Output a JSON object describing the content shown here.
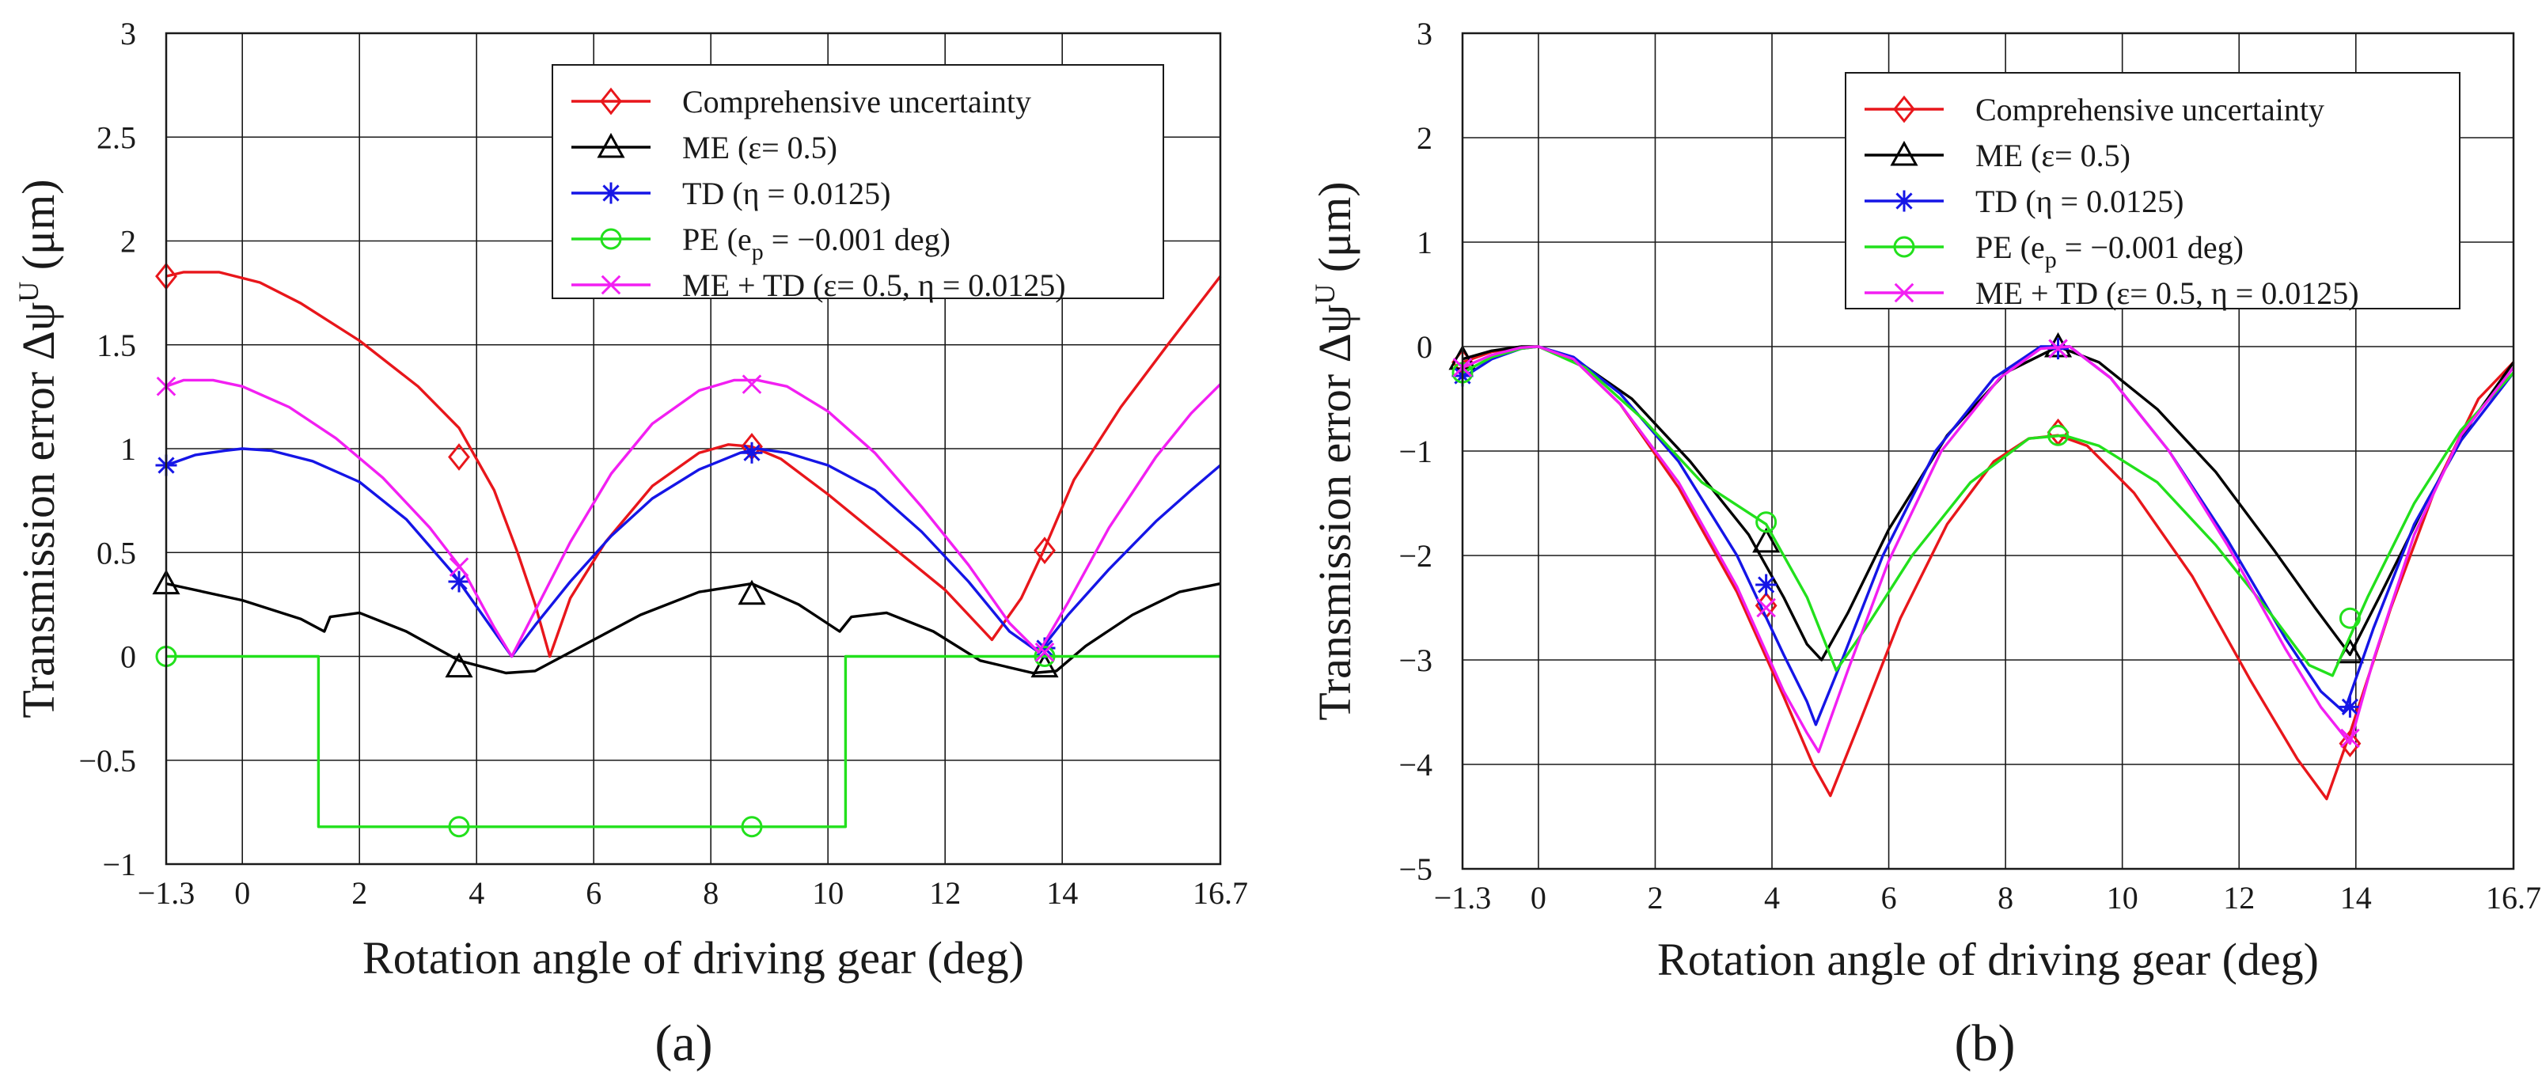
{
  "chart_data": [
    {
      "type": "line",
      "panel_label": "(a)",
      "xlabel": "Rotation angle of driving gear (deg)",
      "ylabel": "Transmission error Δψ",
      "ylabel_sup": "U",
      "ylabel_unit": " (μm)",
      "xlim": [
        -1.3,
        16.7
      ],
      "ylim": [
        -1,
        3
      ],
      "xticks": [
        -1.3,
        0,
        2,
        4,
        6,
        8,
        10,
        12,
        14,
        16.7
      ],
      "xtick_labels": [
        "−1.3",
        "0",
        "2",
        "4",
        "6",
        "8",
        "10",
        "12",
        "14",
        "16.7"
      ],
      "yticks": [
        -1,
        -0.5,
        0,
        0.5,
        1,
        1.5,
        2,
        2.5,
        3
      ],
      "ytick_labels": [
        "−1",
        "−0.5",
        "0",
        "0.5",
        "1",
        "1.5",
        "2",
        "2.5",
        "3"
      ],
      "grid": true,
      "legend_position": "top-right",
      "series": [
        {
          "name": "Comprehensive uncertainty",
          "color": "#e8161b",
          "marker": "diamond",
          "x": [
            -1.3,
            -1.0,
            -0.4,
            0.3,
            1.0,
            2.0,
            3.0,
            3.7,
            4.3,
            4.7,
            5.0,
            5.25,
            5.6,
            6.2,
            7.0,
            7.8,
            8.3,
            8.7,
            9.2,
            10.0,
            11.0,
            12.0,
            12.8,
            13.3,
            13.7,
            14.2,
            15.0,
            15.8,
            16.7
          ],
          "y": [
            1.83,
            1.85,
            1.85,
            1.8,
            1.7,
            1.52,
            1.3,
            1.1,
            0.8,
            0.5,
            0.25,
            0.0,
            0.28,
            0.55,
            0.82,
            0.98,
            1.02,
            1.01,
            0.95,
            0.78,
            0.55,
            0.32,
            0.08,
            0.28,
            0.52,
            0.85,
            1.2,
            1.5,
            1.83
          ],
          "marker_x": [
            -1.3,
            3.7,
            8.7,
            13.7
          ],
          "marker_y": [
            1.83,
            0.96,
            1.01,
            0.51
          ]
        },
        {
          "name": "ME (ε= 0.5)",
          "color": "#000000",
          "marker": "triangle",
          "x": [
            -1.3,
            0.0,
            1.0,
            1.4,
            1.5,
            2.0,
            2.8,
            3.7,
            4.5,
            5.0,
            5.8,
            6.8,
            7.8,
            8.7,
            9.5,
            10.2,
            10.4,
            11.0,
            11.8,
            12.6,
            13.5,
            13.9,
            14.4,
            15.2,
            16.0,
            16.7
          ],
          "y": [
            0.35,
            0.27,
            0.18,
            0.12,
            0.19,
            0.21,
            0.12,
            -0.02,
            -0.08,
            -0.07,
            0.05,
            0.2,
            0.31,
            0.35,
            0.25,
            0.12,
            0.19,
            0.21,
            0.12,
            -0.02,
            -0.08,
            -0.07,
            0.05,
            0.2,
            0.31,
            0.35
          ],
          "marker_x": [
            -1.3,
            3.7,
            8.7,
            13.7
          ],
          "marker_y": [
            0.35,
            -0.05,
            0.3,
            -0.05
          ]
        },
        {
          "name": "TD (η = 0.0125)",
          "color": "#1515e6",
          "marker": "asterisk",
          "x": [
            -1.3,
            -0.8,
            -0.3,
            0.0,
            0.5,
            1.2,
            2.0,
            2.8,
            3.6,
            4.2,
            4.6,
            5.0,
            5.6,
            6.3,
            7.0,
            7.8,
            8.5,
            8.8,
            9.3,
            10.0,
            10.8,
            11.6,
            12.4,
            13.1,
            13.6,
            14.1,
            14.8,
            15.6,
            16.2,
            16.7
          ],
          "y": [
            0.92,
            0.97,
            0.99,
            1.0,
            0.99,
            0.94,
            0.84,
            0.66,
            0.4,
            0.16,
            0.0,
            0.15,
            0.36,
            0.58,
            0.76,
            0.9,
            0.98,
            1.0,
            0.98,
            0.92,
            0.8,
            0.6,
            0.36,
            0.12,
            0.02,
            0.2,
            0.42,
            0.65,
            0.8,
            0.92
          ],
          "marker_x": [
            -1.3,
            3.7,
            8.7,
            13.7
          ],
          "marker_y": [
            0.92,
            0.36,
            0.98,
            0.04
          ]
        },
        {
          "name": "PE (e_p = −0.001 deg)",
          "color": "#22e01c",
          "marker": "circle",
          "x": [
            -1.3,
            1.3,
            1.3,
            10.3,
            10.3,
            16.7
          ],
          "y": [
            0,
            0,
            -0.82,
            -0.82,
            0,
            0
          ],
          "marker_x": [
            -1.3,
            3.7,
            8.7,
            13.7
          ],
          "marker_y": [
            0,
            -0.82,
            -0.82,
            0
          ]
        },
        {
          "name": "ME + TD (ε= 0.5, η = 0.0125)",
          "color": "#f21ff2",
          "marker": "cross",
          "x": [
            -1.3,
            -1.0,
            -0.5,
            0.0,
            0.8,
            1.6,
            2.4,
            3.2,
            3.8,
            4.3,
            4.6,
            5.0,
            5.6,
            6.3,
            7.0,
            7.8,
            8.4,
            8.8,
            9.3,
            10.0,
            10.8,
            11.6,
            12.4,
            13.1,
            13.6,
            14.1,
            14.8,
            15.6,
            16.2,
            16.7
          ],
          "y": [
            1.3,
            1.33,
            1.33,
            1.3,
            1.2,
            1.05,
            0.86,
            0.62,
            0.4,
            0.14,
            0.0,
            0.22,
            0.55,
            0.88,
            1.12,
            1.28,
            1.33,
            1.33,
            1.3,
            1.18,
            0.98,
            0.72,
            0.44,
            0.16,
            0.02,
            0.26,
            0.62,
            0.96,
            1.17,
            1.31
          ],
          "marker_x": [
            -1.3,
            3.7,
            8.7,
            13.7
          ],
          "marker_y": [
            1.3,
            0.43,
            1.31,
            0.02
          ]
        }
      ]
    },
    {
      "type": "line",
      "panel_label": "(b)",
      "xlabel": "Rotation angle of driving gear (deg)",
      "ylabel": "Transmission error Δψ",
      "ylabel_sup": "U",
      "ylabel_unit": " (μm)",
      "xlim": [
        -1.3,
        16.7
      ],
      "ylim": [
        -5,
        3
      ],
      "xticks": [
        -1.3,
        0,
        2,
        4,
        6,
        8,
        10,
        12,
        14,
        16.7
      ],
      "xtick_labels": [
        "−1.3",
        "0",
        "2",
        "4",
        "6",
        "8",
        "10",
        "12",
        "14",
        "16.7"
      ],
      "yticks": [
        -5,
        -4,
        -3,
        -2,
        -1,
        0,
        1,
        2,
        3
      ],
      "ytick_labels": [
        "−5",
        "−4",
        "−3",
        "−2",
        "−1",
        "0",
        "1",
        "2",
        "3"
      ],
      "grid": true,
      "legend_position": "top-right",
      "series": [
        {
          "name": "Comprehensive uncertainty",
          "color": "#e8161b",
          "marker": "diamond",
          "x": [
            -1.3,
            -0.8,
            -0.3,
            0.0,
            0.6,
            1.4,
            2.4,
            3.4,
            4.2,
            4.7,
            5.0,
            5.5,
            6.2,
            7.0,
            7.8,
            8.4,
            8.9,
            9.4,
            10.2,
            11.2,
            12.2,
            13.0,
            13.5,
            13.9,
            14.6,
            15.4,
            16.1,
            16.7
          ],
          "y": [
            -0.15,
            -0.05,
            -0.01,
            0.0,
            -0.12,
            -0.55,
            -1.35,
            -2.35,
            -3.35,
            -4.0,
            -4.3,
            -3.6,
            -2.6,
            -1.7,
            -1.1,
            -0.88,
            -0.85,
            -0.95,
            -1.4,
            -2.2,
            -3.2,
            -3.95,
            -4.33,
            -3.7,
            -2.5,
            -1.3,
            -0.5,
            -0.15
          ],
          "marker_x": [
            -1.3,
            3.9,
            8.9,
            13.9
          ],
          "marker_y": [
            -0.15,
            -2.48,
            -0.82,
            -3.8
          ]
        },
        {
          "name": "ME (ε= 0.5)",
          "color": "#000000",
          "marker": "triangle",
          "x": [
            -1.3,
            -0.8,
            -0.3,
            0.0,
            0.7,
            1.6,
            2.6,
            3.6,
            4.2,
            4.6,
            4.85,
            5.3,
            6.0,
            7.0,
            8.0,
            8.9,
            9.6,
            10.6,
            11.6,
            12.6,
            13.3,
            13.9,
            14.4,
            15.2,
            16.0,
            16.7
          ],
          "y": [
            -0.12,
            -0.04,
            0.0,
            0.0,
            -0.15,
            -0.5,
            -1.1,
            -1.8,
            -2.4,
            -2.85,
            -3.0,
            -2.55,
            -1.75,
            -0.85,
            -0.25,
            0.0,
            -0.15,
            -0.6,
            -1.2,
            -1.95,
            -2.5,
            -2.95,
            -2.4,
            -1.5,
            -0.7,
            -0.15
          ],
          "marker_x": [
            -1.3,
            3.9,
            8.9,
            13.9
          ],
          "marker_y": [
            -0.12,
            -1.87,
            0.0,
            -2.93
          ]
        },
        {
          "name": "TD (η = 0.0125)",
          "color": "#1515e6",
          "marker": "asterisk",
          "x": [
            -1.3,
            -0.8,
            -0.3,
            0.0,
            0.6,
            1.4,
            2.4,
            3.4,
            4.2,
            4.6,
            4.75,
            5.2,
            5.9,
            6.8,
            7.8,
            8.6,
            9.1,
            9.8,
            10.8,
            11.8,
            12.8,
            13.4,
            13.8,
            14.3,
            15.0,
            15.8,
            16.7
          ],
          "y": [
            -0.3,
            -0.12,
            -0.02,
            0.0,
            -0.1,
            -0.45,
            -1.1,
            -2.0,
            -2.95,
            -3.4,
            -3.62,
            -3.0,
            -2.0,
            -1.0,
            -0.3,
            0.0,
            0.0,
            -0.3,
            -1.0,
            -1.85,
            -2.8,
            -3.3,
            -3.5,
            -2.7,
            -1.7,
            -0.9,
            -0.25
          ],
          "marker_x": [
            -1.3,
            3.9,
            8.9,
            13.9
          ],
          "marker_y": [
            -0.28,
            -2.28,
            -0.02,
            -3.45
          ]
        },
        {
          "name": "PE (e_p = −0.001 deg)",
          "color": "#22e01c",
          "marker": "circle",
          "x": [
            -1.3,
            -0.8,
            -0.3,
            0.0,
            0.8,
            1.8,
            2.8,
            3.9,
            4.6,
            5.1,
            5.6,
            6.4,
            7.4,
            8.4,
            9.0,
            9.6,
            10.6,
            11.6,
            12.6,
            13.2,
            13.6,
            14.2,
            15.0,
            15.8,
            16.7
          ],
          "y": [
            -0.25,
            -0.1,
            -0.02,
            0.0,
            -0.2,
            -0.7,
            -1.3,
            -1.7,
            -2.4,
            -3.1,
            -2.7,
            -2.0,
            -1.3,
            -0.88,
            -0.85,
            -0.95,
            -1.3,
            -1.9,
            -2.6,
            -3.05,
            -3.15,
            -2.4,
            -1.5,
            -0.8,
            -0.25
          ],
          "marker_x": [
            -1.3,
            3.9,
            8.9,
            13.9
          ],
          "marker_y": [
            -0.25,
            -1.68,
            -0.85,
            -2.6
          ]
        },
        {
          "name": "ME + TD (ε= 0.5, η = 0.0125)",
          "color": "#f21ff2",
          "marker": "cross",
          "x": [
            -1.3,
            -0.8,
            -0.3,
            0.0,
            0.6,
            1.4,
            2.4,
            3.4,
            4.2,
            4.6,
            4.8,
            5.3,
            6.0,
            6.9,
            7.9,
            8.6,
            9.1,
            9.8,
            10.8,
            11.8,
            12.8,
            13.4,
            13.9,
            14.3,
            15.0,
            15.8,
            16.7
          ],
          "y": [
            -0.2,
            -0.08,
            -0.01,
            0.0,
            -0.12,
            -0.55,
            -1.3,
            -2.3,
            -3.3,
            -3.7,
            -3.88,
            -3.1,
            -2.05,
            -1.0,
            -0.3,
            -0.02,
            0.0,
            -0.3,
            -1.0,
            -1.9,
            -2.9,
            -3.45,
            -3.8,
            -3.0,
            -1.8,
            -0.85,
            -0.2
          ],
          "marker_x": [
            -1.3,
            3.9,
            8.9,
            13.9
          ],
          "marker_y": [
            -0.2,
            -2.5,
            -0.02,
            -3.75
          ]
        }
      ]
    }
  ]
}
